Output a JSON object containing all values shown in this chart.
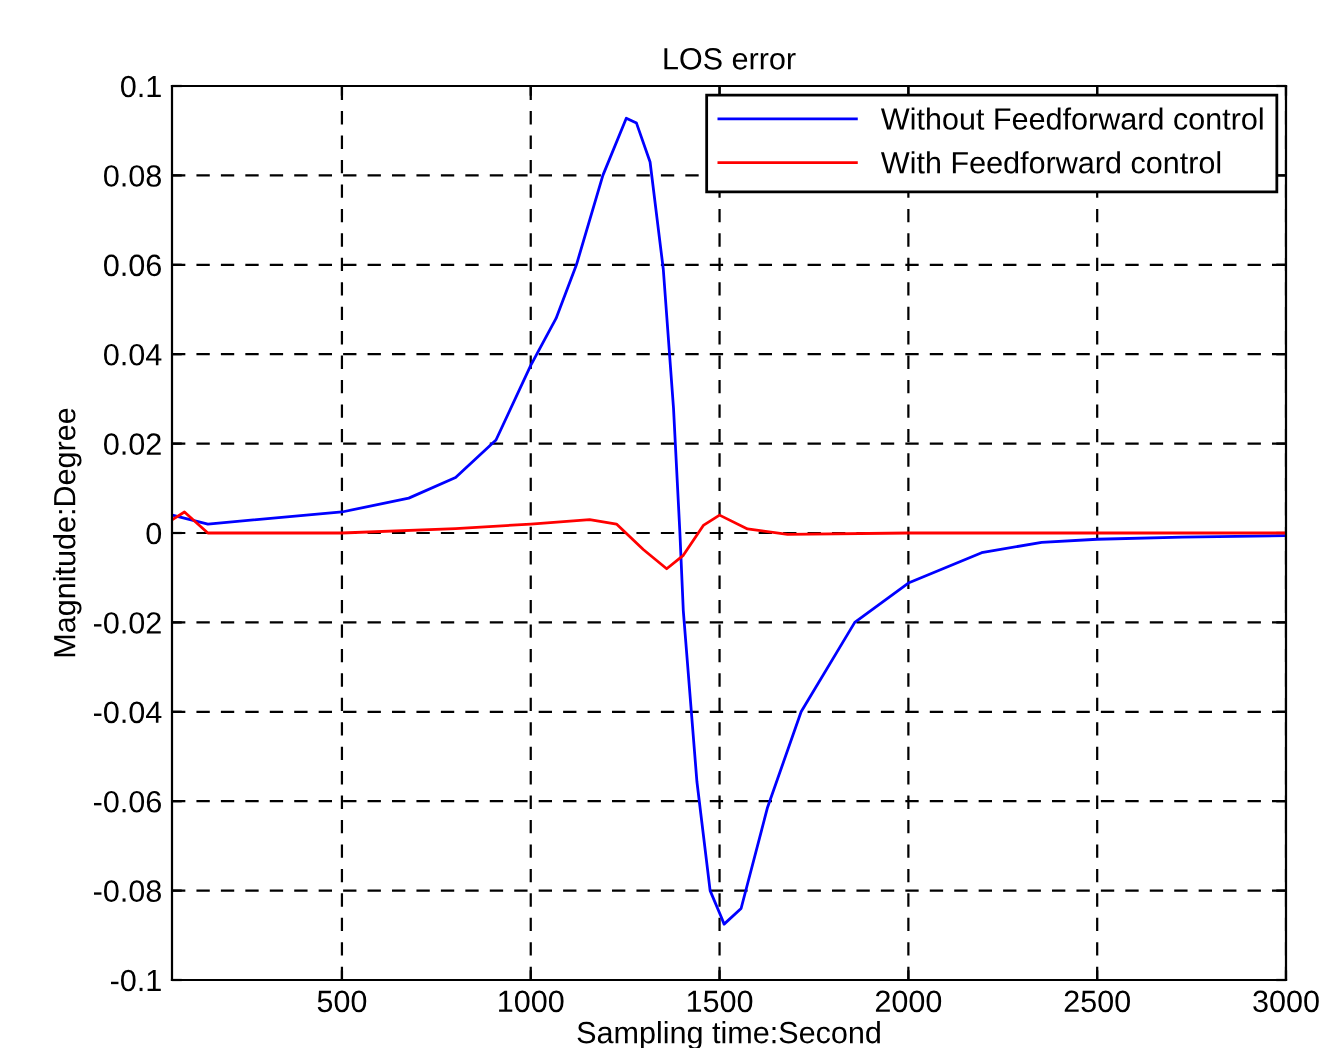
{
  "chart_data": {
    "type": "line",
    "title": "LOS error",
    "xlabel": "Sampling time:Second",
    "ylabel": "Magnitude:Degree",
    "xlim": [
      50,
      3000
    ],
    "xticks": [
      500,
      1000,
      1500,
      2000,
      2500,
      3000
    ],
    "ylim": [
      -0.1,
      0.1
    ],
    "yticks": [
      -0.1,
      -0.08,
      -0.06,
      -0.04,
      -0.02,
      0,
      0.02,
      0.04,
      0.06,
      0.08,
      0.1
    ],
    "grid": true,
    "legend": "top right",
    "line_style": "solid",
    "marker": "none",
    "series": [
      {
        "name": "Without Feedforward control",
        "color": "#0000ff",
        "x": [
          51,
          145,
          500,
          677,
          801,
          908,
          1000,
          1067,
          1121,
          1191,
          1253,
          1280,
          1316,
          1351,
          1378,
          1395,
          1404,
          1440,
          1475,
          1505,
          1512,
          1557,
          1627,
          1716,
          1858,
          2000,
          2194,
          2353,
          2500,
          2725,
          3000
        ],
        "values": [
          0.004,
          0.002,
          0.0047,
          0.0078,
          0.0124,
          0.0208,
          0.0375,
          0.048,
          0.06,
          0.08,
          0.0928,
          0.0917,
          0.083,
          0.059,
          0.028,
          0,
          -0.0174,
          -0.0556,
          -0.08,
          -0.086,
          -0.0875,
          -0.084,
          -0.0614,
          -0.04,
          -0.02,
          -0.0112,
          -0.0044,
          -0.0021,
          -0.0014,
          -0.0009,
          -0.0006
        ]
      },
      {
        "name": "With Feedforward control",
        "color": "#ff0000",
        "x": [
          51,
          83,
          145,
          500,
          801,
          1000,
          1156,
          1227,
          1298,
          1360,
          1404,
          1457,
          1500,
          1574,
          1680,
          2000,
          3000
        ],
        "values": [
          0.003,
          0.0047,
          0,
          0,
          0.001,
          0.002,
          0.003,
          0.002,
          -0.0037,
          -0.008,
          -0.005,
          0.0017,
          0.004,
          0.0009,
          -0.0003,
          0,
          0
        ]
      }
    ]
  }
}
